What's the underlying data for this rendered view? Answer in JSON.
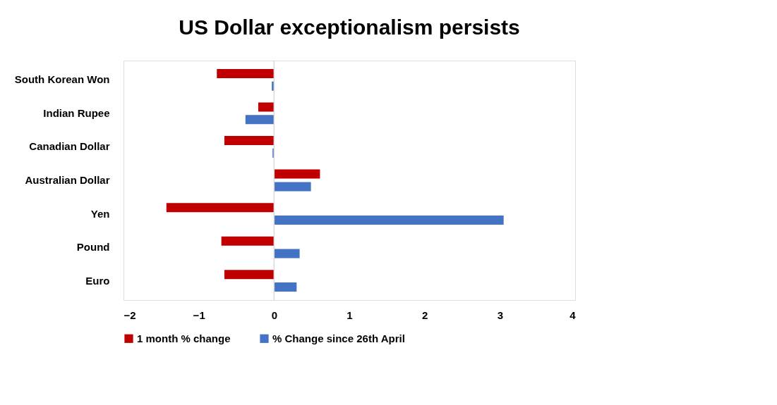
{
  "chart_data": {
    "type": "bar",
    "orientation": "horizontal",
    "title": "US Dollar exceptionalism persists",
    "categories": [
      "South Korean Won",
      "Indian Rupee",
      "Canadian Dollar",
      "Australian Dollar",
      "Yen",
      "Pound",
      "Euro"
    ],
    "series": [
      {
        "name": "1 month % change",
        "color": "#c00000",
        "values": [
          -0.76,
          -0.21,
          -0.66,
          0.61,
          -1.43,
          -0.7,
          -0.66
        ]
      },
      {
        "name": "% Change since 26th April",
        "color": "#4472c4",
        "values": [
          -0.03,
          -0.38,
          -0.02,
          0.49,
          3.05,
          0.34,
          0.3
        ]
      }
    ],
    "xlim": [
      -2,
      4
    ],
    "xticks": [
      -2,
      -1,
      0,
      1,
      2,
      3,
      4
    ],
    "grid": false,
    "legend": "bottom",
    "ref_lines": [
      {
        "axis": "x",
        "value": 0,
        "color": "#d9d9d9"
      }
    ]
  }
}
